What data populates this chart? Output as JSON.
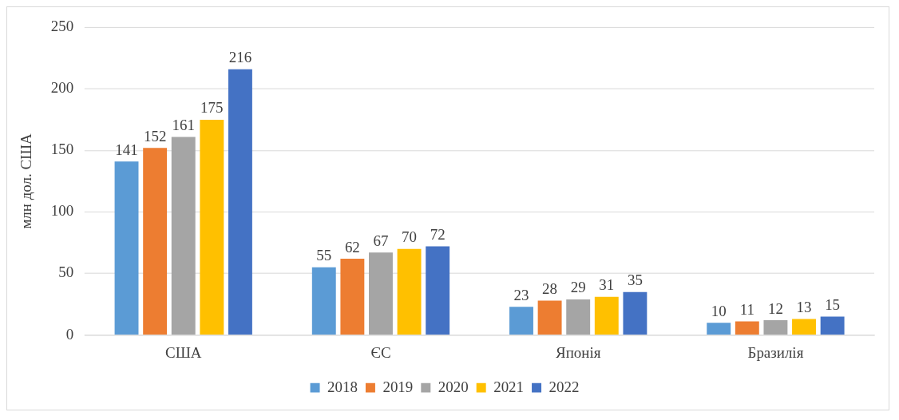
{
  "chart_data": {
    "type": "bar",
    "ylabel": "млн дол. США",
    "categories": [
      "США",
      "ЄС",
      "Японія",
      "Бразилія"
    ],
    "series": [
      {
        "name": "2018",
        "color": "#5b9bd5",
        "values": [
          141,
          55,
          23,
          10
        ]
      },
      {
        "name": "2019",
        "color": "#ed7d31",
        "values": [
          152,
          62,
          28,
          11
        ]
      },
      {
        "name": "2020",
        "color": "#a5a5a5",
        "values": [
          161,
          67,
          29,
          12
        ]
      },
      {
        "name": "2021",
        "color": "#ffc000",
        "values": [
          175,
          70,
          31,
          13
        ]
      },
      {
        "name": "2022",
        "color": "#4472c4",
        "values": [
          216,
          72,
          35,
          15
        ]
      }
    ],
    "ylim": [
      0,
      250
    ],
    "yticks": [
      0,
      50,
      100,
      150,
      200,
      250
    ],
    "grid": "y",
    "legend": "bottom",
    "data_labels": true
  }
}
